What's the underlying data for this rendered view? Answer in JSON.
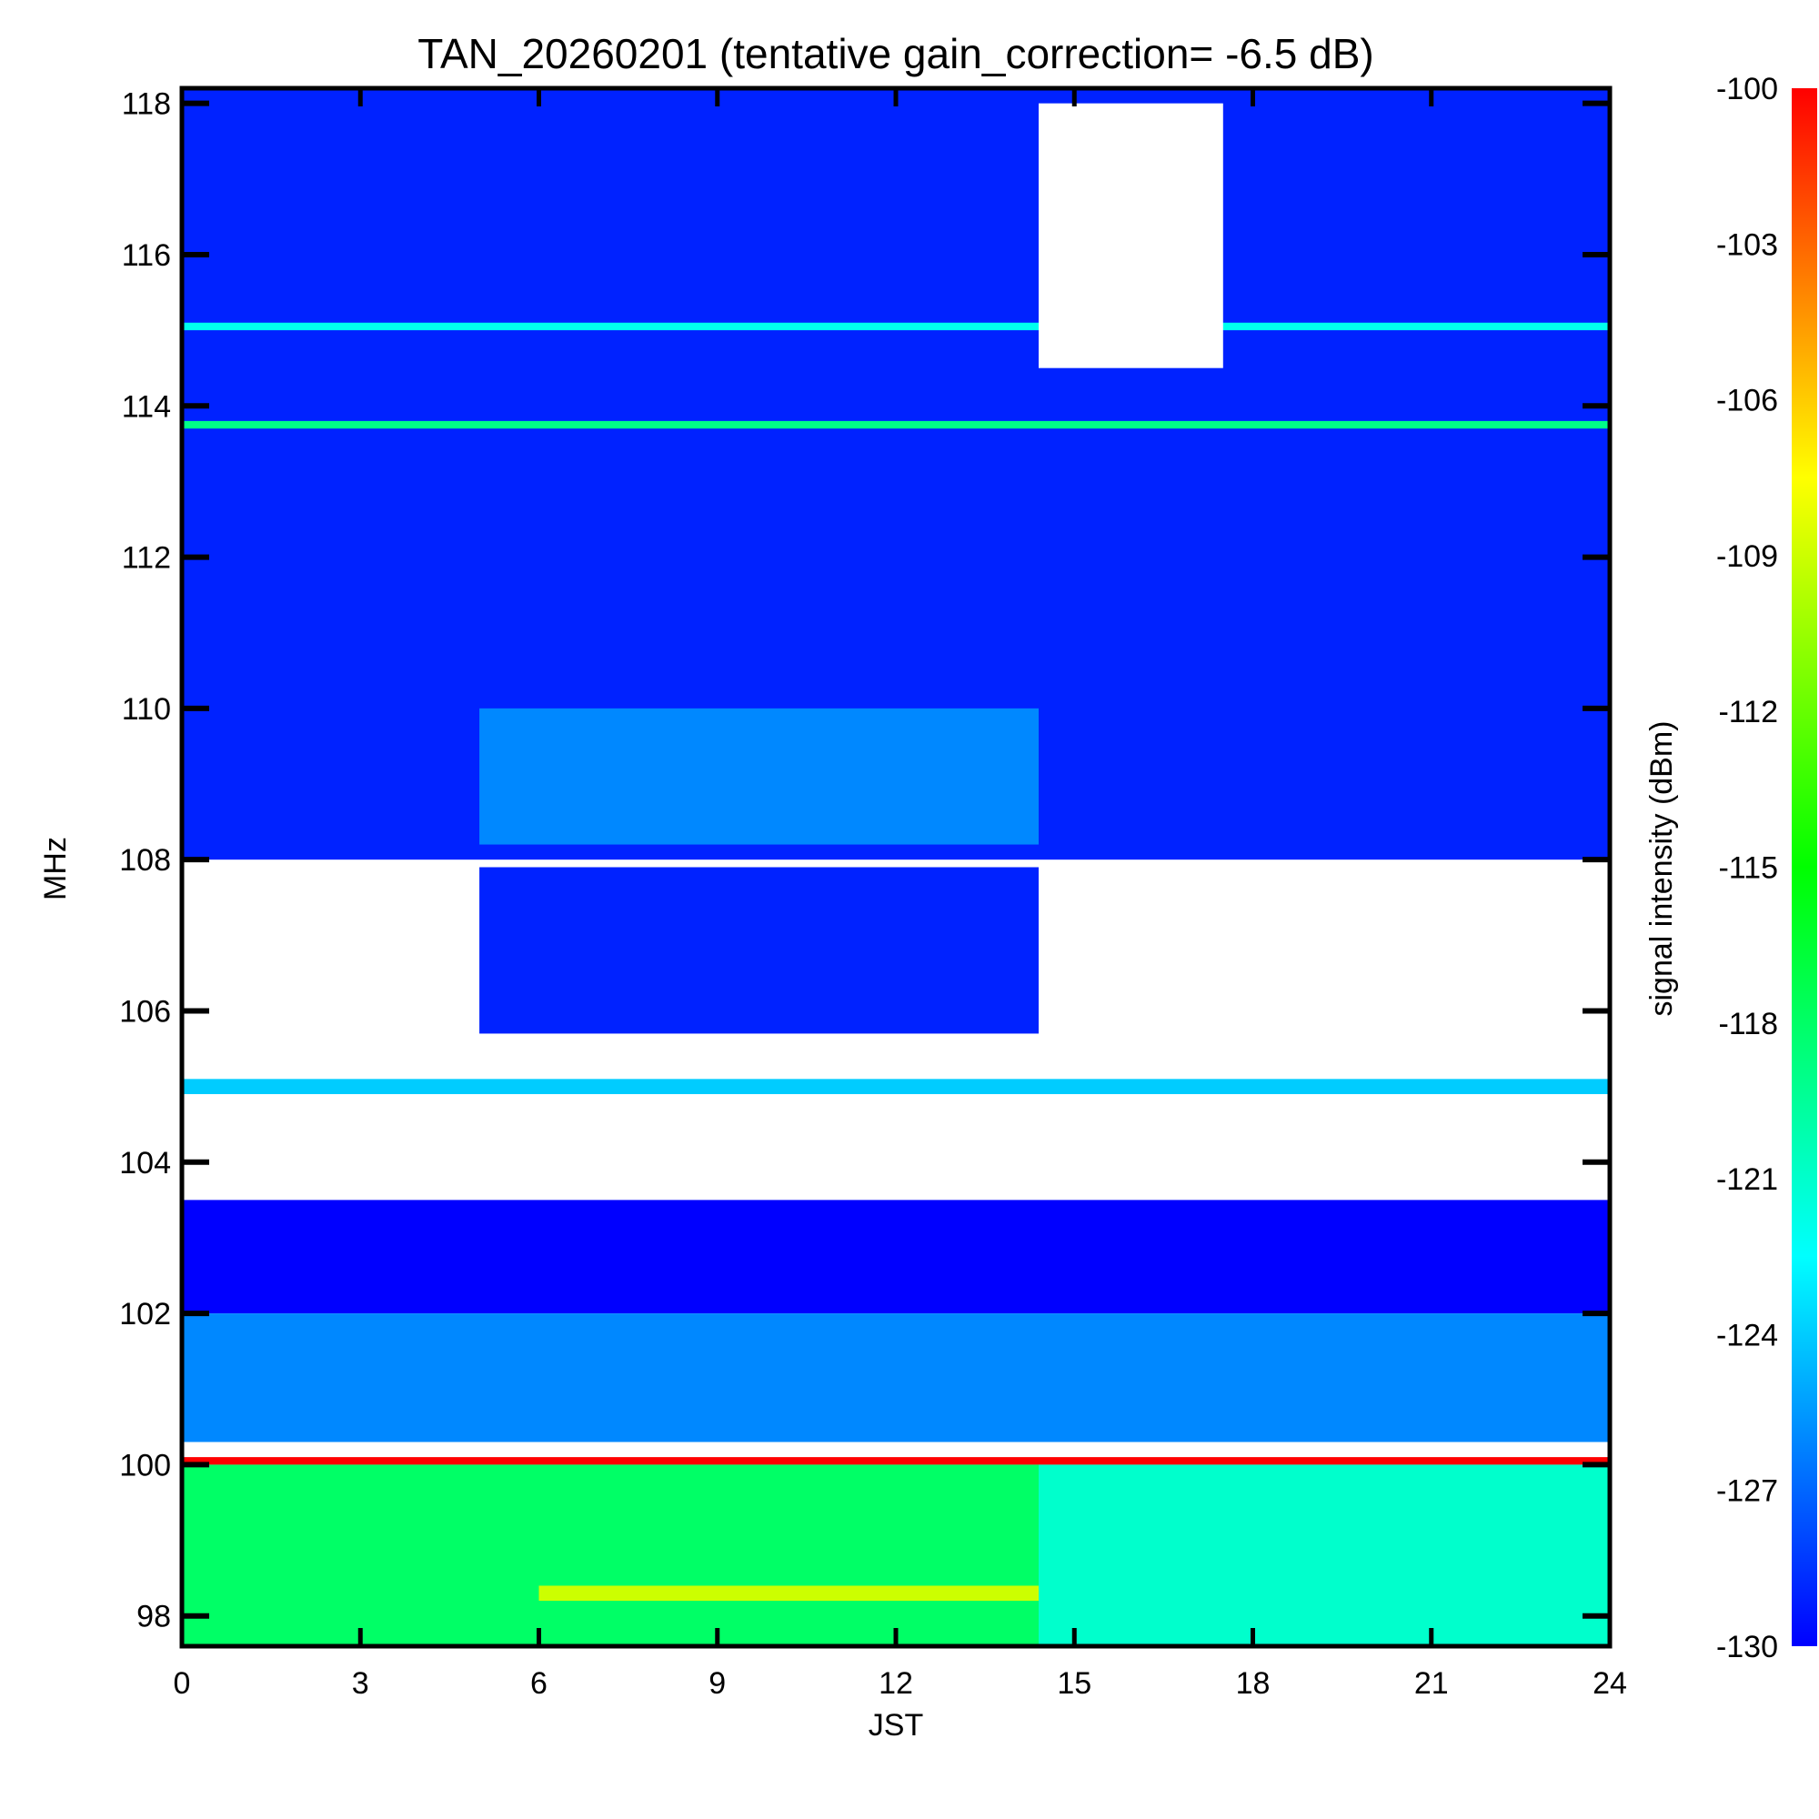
{
  "chart_data": {
    "type": "heatmap",
    "title": "TAN_20260201 (tentative gain_correction= -6.5 dB)",
    "xlabel": "JST",
    "ylabel": "MHz",
    "colorbar_label": "signal intensity (dBm)",
    "xlim": [
      0,
      24
    ],
    "ylim": [
      97.6,
      118.2
    ],
    "x_ticks": [
      0,
      3,
      6,
      9,
      12,
      15,
      18,
      21,
      24
    ],
    "y_ticks": [
      98,
      100,
      102,
      104,
      106,
      108,
      110,
      112,
      114,
      116,
      118
    ],
    "colorbar_range": [
      -130,
      -100
    ],
    "colorbar_ticks": [
      -100,
      -103,
      -106,
      -109,
      -112,
      -115,
      -118,
      -121,
      -124,
      -127,
      -130
    ],
    "colormap": [
      "#0000ff",
      "#00ffff",
      "#00ff00",
      "#ffff00",
      "#ff0000"
    ],
    "regions": [
      {
        "freq": [
          108,
          118.2
        ],
        "time": [
          0,
          24
        ],
        "level": -129,
        "note": "background blue"
      },
      {
        "freq": [
          108.2,
          110.0
        ],
        "time": [
          5,
          14.4
        ],
        "level": -126,
        "note": "daytime cyan enhancement"
      },
      {
        "freq": [
          113.7,
          113.8
        ],
        "time": [
          0,
          24
        ],
        "level": -119,
        "note": "persistent carrier"
      },
      {
        "freq": [
          115.0,
          115.1
        ],
        "time": [
          0,
          24
        ],
        "level": -122,
        "note": "persistent carrier"
      },
      {
        "freq": [
          114.5,
          118.0
        ],
        "time": [
          14.4,
          17.5
        ],
        "level": -135,
        "note": "white gaps (below scale)"
      },
      {
        "freq": [
          105.7,
          107.9
        ],
        "time": [
          5.0,
          14.4
        ],
        "level": -129,
        "note": "daytime blue block"
      },
      {
        "freq": [
          104.9,
          105.1
        ],
        "time": [
          0,
          24
        ],
        "level": -124,
        "note": "carrier band"
      },
      {
        "freq": [
          102.0,
          103.5
        ],
        "time": [
          0,
          24
        ],
        "level": -130,
        "note": "sparse blue"
      },
      {
        "freq": [
          100.3,
          102.0
        ],
        "time": [
          0,
          24
        ],
        "level": -126,
        "note": "cyan/blue bands"
      },
      {
        "freq": [
          100.0,
          100.1
        ],
        "time": [
          0,
          24
        ],
        "level": -100,
        "note": "strong carrier (red)"
      },
      {
        "freq": [
          97.6,
          100.0
        ],
        "time": [
          0,
          14.4
        ],
        "level": -118,
        "note": "green/yellow"
      },
      {
        "freq": [
          98.2,
          98.4
        ],
        "time": [
          6,
          14.4
        ],
        "level": -109,
        "note": "yellow-orange band"
      },
      {
        "freq": [
          97.6,
          100.0
        ],
        "time": [
          14.4,
          24
        ],
        "level": -121,
        "note": "green"
      }
    ]
  }
}
